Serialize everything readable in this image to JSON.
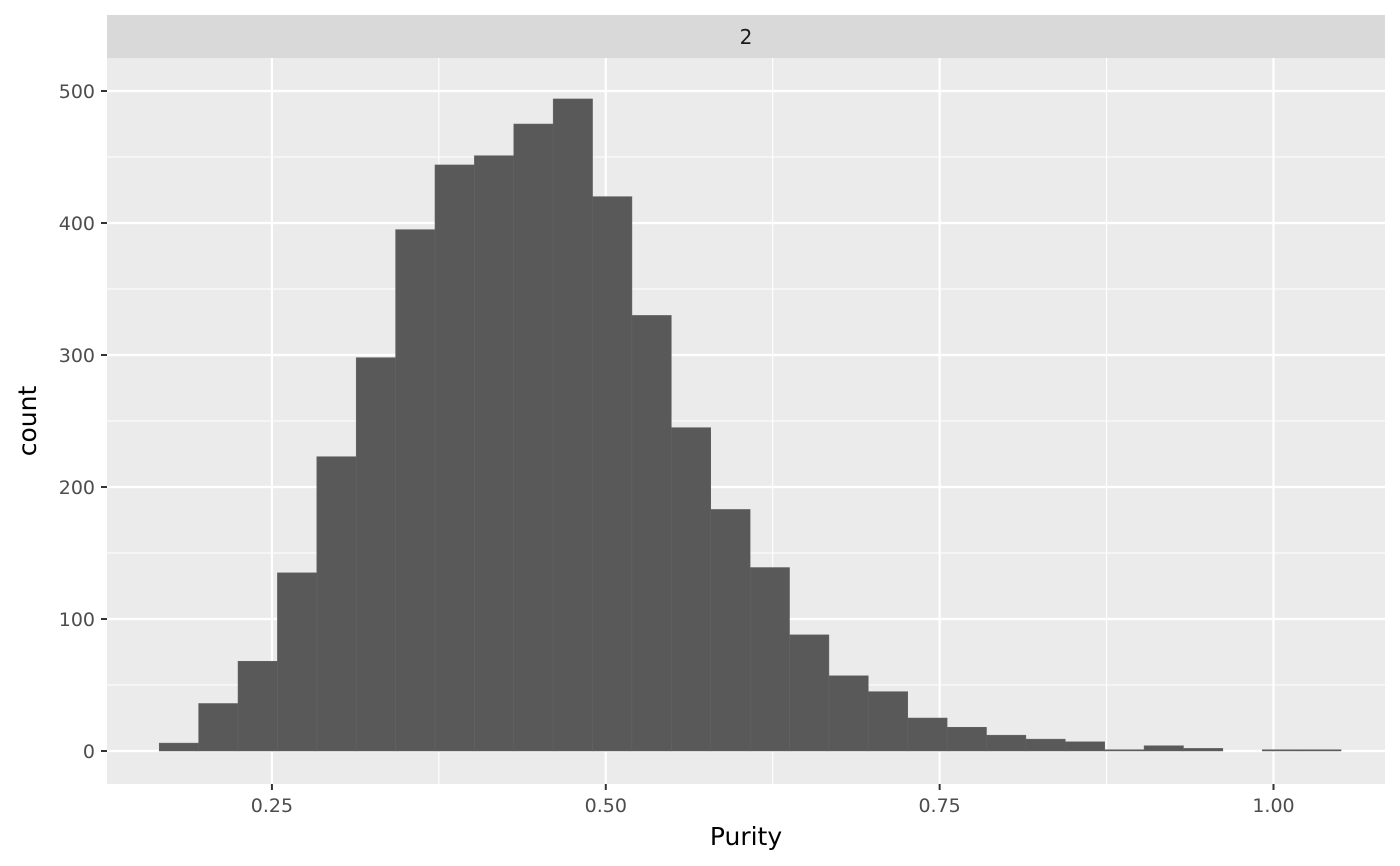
{
  "chart_data": {
    "type": "bar",
    "subtype": "histogram",
    "facet_label": "2",
    "xlabel": "Purity",
    "ylabel": "count",
    "xlim": [
      0.1265,
      1.0835
    ],
    "ylim": [
      -25,
      525
    ],
    "x_ticks": [
      {
        "value": 0.25,
        "label": "0.25"
      },
      {
        "value": 0.5,
        "label": "0.50"
      },
      {
        "value": 0.75,
        "label": "0.75"
      },
      {
        "value": 1.0,
        "label": "1.00"
      }
    ],
    "y_ticks": [
      {
        "value": 0,
        "label": "0"
      },
      {
        "value": 100,
        "label": "100"
      },
      {
        "value": 200,
        "label": "200"
      },
      {
        "value": 300,
        "label": "300"
      },
      {
        "value": 400,
        "label": "400"
      },
      {
        "value": 500,
        "label": "500"
      }
    ],
    "bin_start": 0.1656,
    "bin_width": 0.0295,
    "values": [
      6,
      36,
      68,
      135,
      223,
      298,
      395,
      444,
      451,
      475,
      494,
      420,
      330,
      245,
      183,
      139,
      88,
      57,
      45,
      25,
      18,
      12,
      9,
      7,
      1,
      4,
      2,
      0,
      1,
      1
    ],
    "grid": true,
    "legend": "none",
    "colors": {
      "bar_fill": "#595959",
      "panel_bg": "#ebebeb",
      "grid": "#ffffff",
      "strip_bg": "#d9d9d9"
    }
  }
}
